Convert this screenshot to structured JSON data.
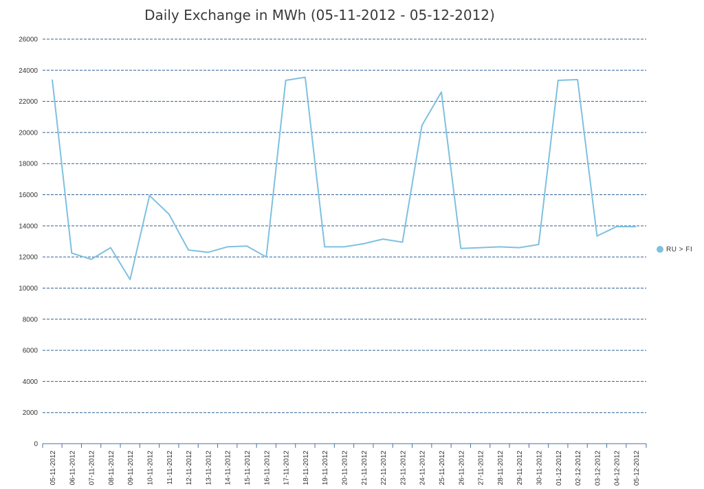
{
  "chart_data": {
    "type": "line",
    "title": "Daily Exchange in MWh (05-11-2012 - 05-12-2012)",
    "xlabel": "",
    "ylabel": "",
    "ylim": [
      0,
      26000
    ],
    "yticks": [
      0,
      2000,
      4000,
      6000,
      8000,
      10000,
      12000,
      14000,
      16000,
      18000,
      20000,
      22000,
      24000,
      26000
    ],
    "grid": true,
    "legend_position": "right",
    "categories": [
      "05-11-2012",
      "06-11-2012",
      "07-11-2012",
      "08-11-2012",
      "09-11-2012",
      "10-11-2012",
      "11-11-2012",
      "12-11-2012",
      "13-11-2012",
      "14-11-2012",
      "15-11-2012",
      "16-11-2012",
      "17-11-2012",
      "18-11-2012",
      "19-11-2012",
      "20-11-2012",
      "21-11-2012",
      "22-11-2012",
      "23-11-2012",
      "24-11-2012",
      "25-11-2012",
      "26-11-2012",
      "27-11-2012",
      "28-11-2012",
      "29-11-2012",
      "30-11-2012",
      "01-12-2012",
      "02-12-2012",
      "03-12-2012",
      "04-12-2012",
      "05-12-2012"
    ],
    "series": [
      {
        "name": "RU > FI",
        "color": "#7ec0e0",
        "values": [
          23400,
          12250,
          11850,
          12600,
          10550,
          15950,
          14750,
          12450,
          12300,
          12650,
          12700,
          12000,
          23350,
          23550,
          12650,
          12650,
          12850,
          13150,
          12950,
          20450,
          22600,
          12550,
          12600,
          12650,
          12600,
          12800,
          23350,
          23400,
          13350,
          13950,
          13950
        ]
      }
    ]
  }
}
